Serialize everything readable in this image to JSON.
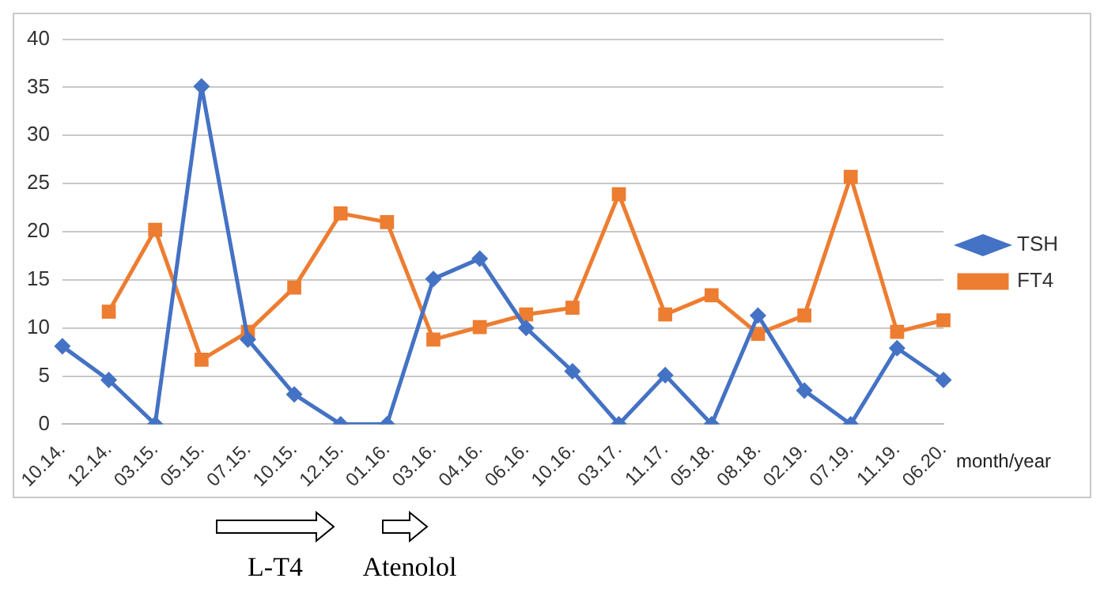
{
  "chart_data": {
    "type": "line",
    "xlabel": "month/year",
    "categories": [
      "10.14.",
      "12.14.",
      "03.15.",
      "05.15.",
      "07.15.",
      "10.15.",
      "12.15.",
      "01.16.",
      "03.16.",
      "04.16.",
      "06.16.",
      "10.16.",
      "03.17.",
      "11.17.",
      "05.18.",
      "08.18.",
      "02.19.",
      "07.19.",
      "11.19.",
      "06.20."
    ],
    "series": [
      {
        "name": "TSH",
        "color": "#4472c4",
        "marker": "diamond",
        "values": [
          8.1,
          4.6,
          0,
          35.1,
          8.8,
          3.1,
          0,
          0,
          15.1,
          17.2,
          10,
          5.5,
          0,
          5.1,
          0,
          11.3,
          3.5,
          0,
          7.9,
          4.6
        ]
      },
      {
        "name": "FT4",
        "color": "#ed7d31",
        "marker": "square",
        "values": [
          null,
          11.7,
          20.2,
          6.7,
          9.6,
          14.2,
          21.9,
          21,
          8.8,
          10.1,
          11.4,
          12.1,
          23.9,
          11.4,
          13.4,
          9.4,
          11.3,
          25.7,
          9.6,
          10.8
        ]
      }
    ],
    "ylim": [
      0,
      40
    ],
    "yticks": [
      0,
      5,
      10,
      15,
      20,
      25,
      30,
      35,
      40
    ],
    "grid": "y",
    "legend": "right",
    "annotations": [
      "L-T4",
      "Atenolol"
    ]
  }
}
